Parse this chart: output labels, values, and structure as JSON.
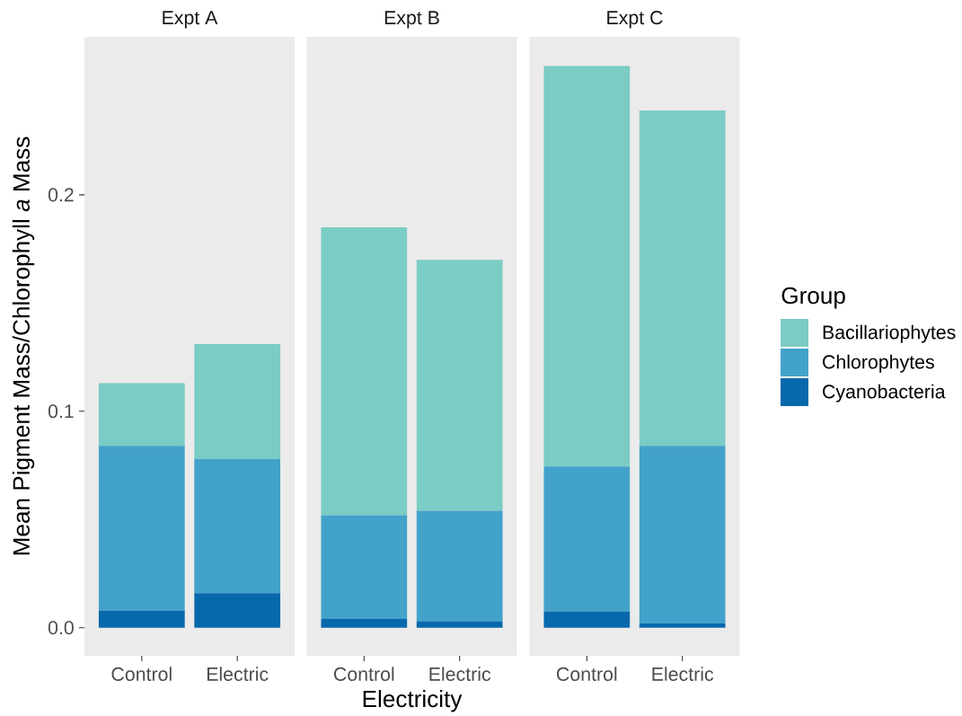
{
  "chart_data": [
    {
      "type": "bar",
      "title": "Expt A",
      "categories": [
        "Control",
        "Electric"
      ],
      "stacked": true,
      "ylim": [
        -0.013,
        0.273
      ],
      "yticks": [
        {
          "value": 0,
          "label": "0.0"
        },
        0.1,
        0.2
      ],
      "ylabel": "Mean Pigment Mass/Chlorophyll *a* Mass",
      "series": [
        {
          "color": "#0868ac",
          "values": [
            0.008,
            0.016
          ]
        },
        {
          "color": "#43a2ca",
          "values": [
            0.076,
            0.062
          ]
        },
        {
          "color": "#7bccc4",
          "values": [
            0.029,
            0.053
          ]
        }
      ]
    },
    {
      "type": "bar",
      "title": "Expt B",
      "categories": [
        "Control",
        "Electric"
      ],
      "stacked": true,
      "ylim": [
        -0.013,
        0.273
      ],
      "tick_labels": "x",
      "xlabel": "Electricity",
      "series": [
        {
          "color": "#0868ac",
          "values": [
            0.004,
            0.003
          ]
        },
        {
          "color": "#43a2ca",
          "values": [
            0.048,
            0.051
          ]
        },
        {
          "color": "#7bccc4",
          "values": [
            0.133,
            0.116
          ]
        }
      ]
    },
    {
      "type": "bar",
      "title": "Expt C",
      "categories": [
        "Control",
        "Electric"
      ],
      "stacked": true,
      "ylim": [
        -0.013,
        0.273
      ],
      "tick_labels": "x",
      "legend": "right",
      "legend_title": "Group",
      "series": [
        {
          "name": "Cyanobacteria",
          "color": "#0868ac",
          "values": [
            0.0075,
            0.002
          ]
        },
        {
          "name": "Chlorophytes",
          "color": "#43a2ca",
          "values": [
            0.067,
            0.082
          ]
        },
        {
          "name": "Bacillariophytes",
          "color": "#7bccc4",
          "values": [
            0.185,
            0.155
          ]
        }
      ]
    }
  ]
}
